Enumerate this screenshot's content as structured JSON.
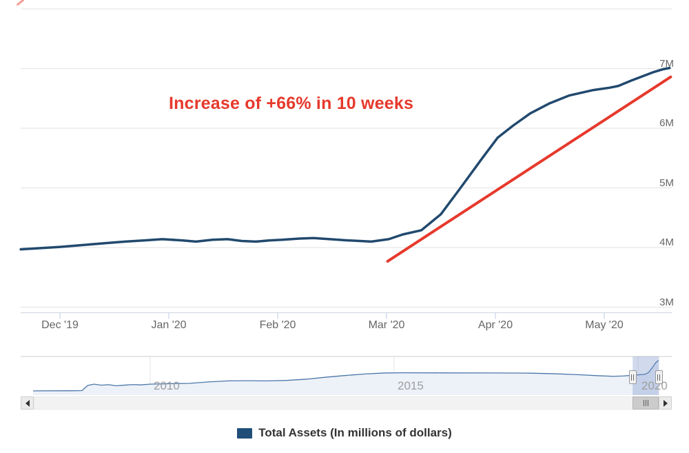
{
  "ui": {
    "annotation": {
      "text": "Increase of +66% in 10 weeks",
      "color": "#e6392c"
    },
    "legend": {
      "label": "Total Assets (In millions of dollars)",
      "swatch_color": "#1f4e79"
    },
    "scrollbar": {
      "left_icon": "left-arrow",
      "right_icon": "right-arrow",
      "thumb_icon": "grip-lines"
    },
    "navigator_handle_icon": "grip-lines"
  },
  "chart_data": {
    "type": "line",
    "title": "",
    "legend_position": "bottom-center",
    "grid": "horizontal-only",
    "x_axis": {
      "tick_labels": [
        "Dec '19",
        "Jan '20",
        "Feb '20",
        "Mar '20",
        "Apr '20",
        "May '20"
      ],
      "unit": "months_from_dec_2019_tick"
    },
    "y_axis": {
      "side": "right",
      "tick_labels": [
        "3M",
        "4M",
        "5M",
        "6M",
        "7M"
      ],
      "labeled_values": [
        3,
        4,
        5,
        6,
        7
      ],
      "gridline_values": [
        3,
        4,
        5,
        6,
        7,
        8
      ],
      "unit": "millions of dollars",
      "range_shown": [
        3,
        8
      ]
    },
    "series": [
      {
        "name": "Total Assets (In millions of dollars)",
        "color": "#21496e",
        "points": [
          [
            -0.36,
            3.97
          ],
          [
            -0.18,
            3.99
          ],
          [
            0,
            4.01
          ],
          [
            0.2,
            4.04
          ],
          [
            0.4,
            4.07
          ],
          [
            0.6,
            4.1
          ],
          [
            0.78,
            4.12
          ],
          [
            0.94,
            4.14
          ],
          [
            1.12,
            4.12
          ],
          [
            1.25,
            4.1
          ],
          [
            1.4,
            4.13
          ],
          [
            1.54,
            4.14
          ],
          [
            1.67,
            4.11
          ],
          [
            1.8,
            4.1
          ],
          [
            1.93,
            4.12
          ],
          [
            2.04,
            4.13
          ],
          [
            2.2,
            4.15
          ],
          [
            2.33,
            4.16
          ],
          [
            2.48,
            4.14
          ],
          [
            2.64,
            4.12
          ],
          [
            2.86,
            4.1
          ],
          [
            3.02,
            4.14
          ],
          [
            3.15,
            4.22
          ],
          [
            3.32,
            4.29
          ],
          [
            3.5,
            4.56
          ],
          [
            3.68,
            5.0
          ],
          [
            3.88,
            5.5
          ],
          [
            4.02,
            5.84
          ],
          [
            4.16,
            6.04
          ],
          [
            4.32,
            6.25
          ],
          [
            4.5,
            6.42
          ],
          [
            4.68,
            6.55
          ],
          [
            4.9,
            6.64
          ],
          [
            5.05,
            6.68
          ],
          [
            5.13,
            6.71
          ],
          [
            5.25,
            6.8
          ],
          [
            5.35,
            6.87
          ],
          [
            5.45,
            6.94
          ],
          [
            5.54,
            6.99
          ],
          [
            5.6,
            7.01
          ]
        ]
      }
    ],
    "trend_line": {
      "color": "#e6392c",
      "points": [
        [
          3.01,
          3.77
        ],
        [
          5.61,
          6.86
        ]
      ]
    },
    "navigator": {
      "year_labels": [
        {
          "label": "2010",
          "year": 2010
        },
        {
          "label": "2015",
          "year": 2015
        },
        {
          "label": "2020",
          "year": 2020
        }
      ],
      "series_color": "#4a77a8",
      "fill_color": "#edf1f8",
      "mask_color": "rgba(102,133,194,0.3)",
      "points": [
        [
          2007.6,
          0.85
        ],
        [
          2008.4,
          0.88
        ],
        [
          2008.6,
          0.9
        ],
        [
          2008.72,
          1.95
        ],
        [
          2008.85,
          2.2
        ],
        [
          2009.0,
          2.0
        ],
        [
          2009.15,
          2.1
        ],
        [
          2009.3,
          1.88
        ],
        [
          2009.5,
          2.02
        ],
        [
          2009.65,
          2.12
        ],
        [
          2009.8,
          2.06
        ],
        [
          2010.0,
          2.2
        ],
        [
          2010.4,
          2.3
        ],
        [
          2010.8,
          2.36
        ],
        [
          2011.2,
          2.66
        ],
        [
          2011.6,
          2.86
        ],
        [
          2012.0,
          2.9
        ],
        [
          2012.4,
          2.86
        ],
        [
          2012.8,
          2.96
        ],
        [
          2013.2,
          3.2
        ],
        [
          2013.6,
          3.6
        ],
        [
          2014.0,
          3.95
        ],
        [
          2014.4,
          4.25
        ],
        [
          2014.8,
          4.45
        ],
        [
          2015.2,
          4.5
        ],
        [
          2016.0,
          4.47
        ],
        [
          2017.0,
          4.46
        ],
        [
          2017.8,
          4.42
        ],
        [
          2018.3,
          4.3
        ],
        [
          2018.8,
          4.1
        ],
        [
          2019.2,
          3.9
        ],
        [
          2019.5,
          3.78
        ],
        [
          2019.7,
          3.85
        ],
        [
          2019.9,
          4.0
        ],
        [
          2020.05,
          4.12
        ],
        [
          2020.15,
          4.2
        ],
        [
          2020.22,
          4.6
        ],
        [
          2020.3,
          5.6
        ],
        [
          2020.36,
          6.5
        ],
        [
          2020.42,
          7.0
        ]
      ],
      "selection": {
        "start_year": 2019.89,
        "end_year": 2020.43
      }
    }
  }
}
